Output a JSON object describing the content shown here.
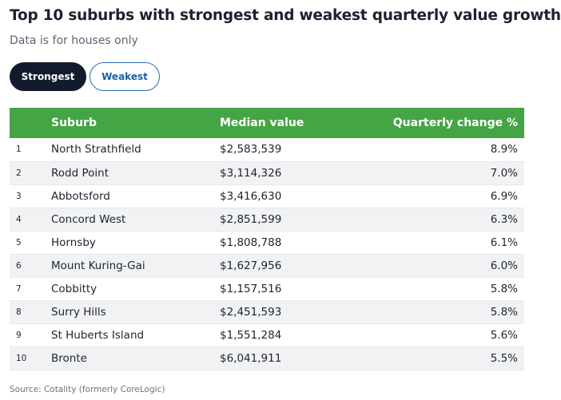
{
  "header": {
    "title": "Top 10 suburbs with strongest and weakest quarterly value growth",
    "subtitle": "Data is for houses only"
  },
  "toggle": {
    "strongest_label": "Strongest",
    "weakest_label": "Weakest",
    "selected": "Strongest"
  },
  "table": {
    "columns": {
      "rank": "",
      "suburb": "Suburb",
      "value": "Median value",
      "change": "Quarterly change %"
    },
    "rows": [
      {
        "rank": "1",
        "suburb": "North Strathfield",
        "value": "$2,583,539",
        "change": "8.9%"
      },
      {
        "rank": "2",
        "suburb": "Rodd Point",
        "value": "$3,114,326",
        "change": "7.0%"
      },
      {
        "rank": "3",
        "suburb": "Abbotsford",
        "value": "$3,416,630",
        "change": "6.9%"
      },
      {
        "rank": "4",
        "suburb": "Concord West",
        "value": "$2,851,599",
        "change": "6.3%"
      },
      {
        "rank": "5",
        "suburb": "Hornsby",
        "value": "$1,808,788",
        "change": "6.1%"
      },
      {
        "rank": "6",
        "suburb": "Mount Kuring-Gai",
        "value": "$1,627,956",
        "change": "6.0%"
      },
      {
        "rank": "7",
        "suburb": "Cobbitty",
        "value": "$1,157,516",
        "change": "5.8%"
      },
      {
        "rank": "8",
        "suburb": "Surry Hills",
        "value": "$2,451,593",
        "change": "5.8%"
      },
      {
        "rank": "9",
        "suburb": "St Huberts Island",
        "value": "$1,551,284",
        "change": "5.6%"
      },
      {
        "rank": "10",
        "suburb": "Bronte",
        "value": "$6,041,911",
        "change": "5.5%"
      }
    ]
  },
  "footer": {
    "source": "Source: Cotality (formerly CoreLogic)"
  },
  "colors": {
    "header_green": "#45a444",
    "selected_button": "#141a2e",
    "unselected_button_text": "#1a5fa8",
    "stripe": "#f1f2f3"
  }
}
